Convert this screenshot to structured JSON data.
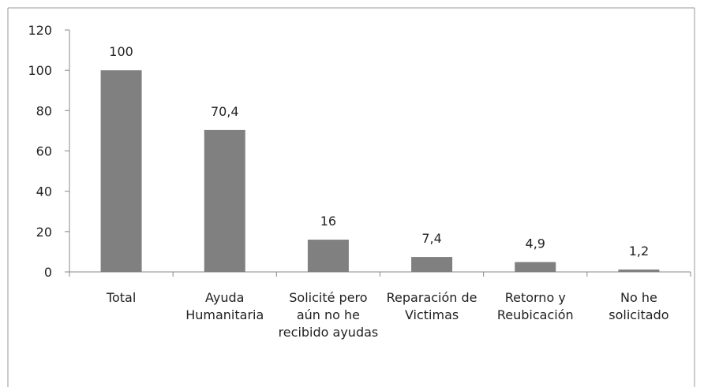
{
  "chart_data": {
    "type": "bar",
    "categories": [
      "Total",
      "Ayuda Humanitaria",
      "Solicité pero aún no he recibido ayudas",
      "Reparación de Victimas",
      "Retorno y Reubicación",
      "No he solicitado"
    ],
    "values": [
      100,
      70.4,
      16,
      7.4,
      4.9,
      1.2
    ],
    "value_labels": [
      "100",
      "70,4",
      "16",
      "7,4",
      "4,9",
      "1,2"
    ],
    "color": "#808080",
    "ylim": [
      0,
      120
    ],
    "yticks": [
      0,
      20,
      40,
      60,
      80,
      100,
      120
    ],
    "grid": false
  }
}
